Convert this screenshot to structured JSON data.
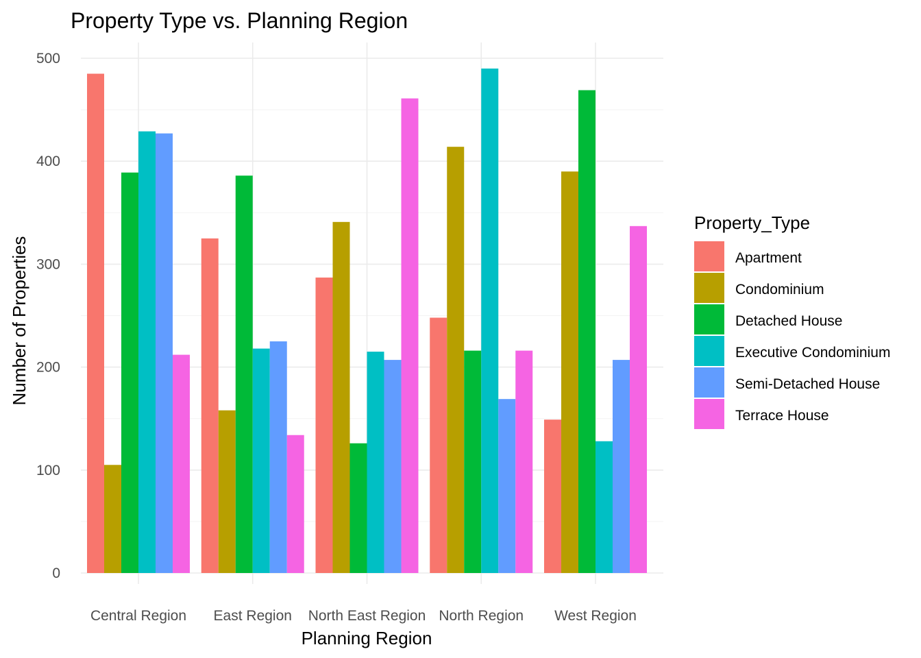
{
  "chart_data": {
    "type": "bar",
    "title": "Property Type vs. Planning Region",
    "xlabel": "Planning Region",
    "ylabel": "Number of Properties",
    "ylim": [
      0,
      500
    ],
    "yticks": [
      0,
      100,
      200,
      300,
      400,
      500
    ],
    "grid": true,
    "legend_title": "Property_Type",
    "legend_position": "right",
    "categories": [
      "Central Region",
      "East Region",
      "North East Region",
      "North Region",
      "West Region"
    ],
    "series": [
      {
        "name": "Apartment",
        "color": "#F8766D",
        "values": [
          485,
          325,
          287,
          248,
          149
        ]
      },
      {
        "name": "Condominium",
        "color": "#B79F00",
        "values": [
          105,
          158,
          341,
          414,
          390
        ]
      },
      {
        "name": "Detached House",
        "color": "#00BA38",
        "values": [
          389,
          386,
          126,
          216,
          469
        ]
      },
      {
        "name": "Executive Condominium",
        "color": "#00BFC4",
        "values": [
          429,
          218,
          215,
          490,
          128
        ]
      },
      {
        "name": "Semi-Detached House",
        "color": "#619CFF",
        "values": [
          427,
          225,
          207,
          169,
          207
        ]
      },
      {
        "name": "Terrace House",
        "color": "#F564E3",
        "values": [
          212,
          134,
          461,
          216,
          337
        ]
      }
    ]
  }
}
